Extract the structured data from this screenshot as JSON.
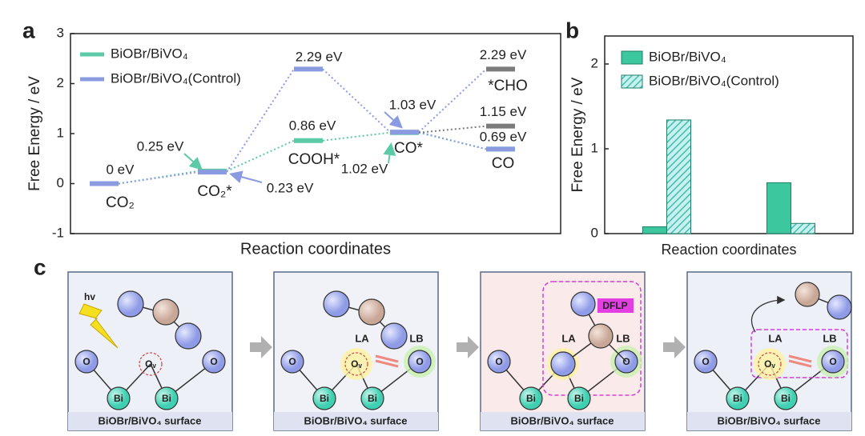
{
  "chart_data": [
    {
      "type": "energy-level",
      "label": "a",
      "ylabel": "Free Energy / eV",
      "xlabel": "Reaction coordinates",
      "ylim": [
        -1,
        3
      ],
      "yticks": [
        -1,
        0,
        1,
        2,
        3
      ],
      "categories": [
        "CO₂",
        "CO₂*",
        "COOH*",
        "CO*",
        "CO"
      ],
      "series": [
        {
          "name": "BiOBr/BiVO₄",
          "color": "#5ccaa6",
          "values": [
            0,
            0.25,
            0.86,
            1.02,
            0.69
          ],
          "value_labels": [
            null,
            "0.25 eV",
            "0.86 eV",
            "1.02 eV",
            null
          ]
        },
        {
          "name": "BiOBr/BiVO₄(Control)",
          "color": "#8b9be2",
          "values": [
            0,
            0.23,
            2.29,
            1.03,
            0.69
          ],
          "value_labels": [
            "0 eV",
            "0.23 eV",
            "2.29 eV",
            "1.03 eV",
            "0.69 eV"
          ]
        }
      ],
      "branch": {
        "label": "*CHO",
        "color": "#7b7b7b",
        "values": [
          2.29,
          1.15
        ],
        "value_labels": [
          "2.29 eV",
          "1.15 eV"
        ]
      }
    },
    {
      "type": "bar",
      "label": "b",
      "ylabel": "Free Energy / eV",
      "xlabel": "Reaction coordinates",
      "ylim": [
        0,
        2.33
      ],
      "yticks": [
        0,
        1,
        2
      ],
      "categories": [
        null,
        null
      ],
      "series": [
        {
          "name": "BiOBr/BiVO₄",
          "color": "#3cc79e",
          "hatch": false,
          "values": [
            0.08,
            0.6
          ]
        },
        {
          "name": "BiOBr/BiVO₄(Control)",
          "color": "#55cfc6",
          "hatch": true,
          "values": [
            1.34,
            0.12
          ]
        }
      ]
    }
  ],
  "diagram": {
    "label": "c",
    "surface": "BiOBr/BiVO₄ surface",
    "o": "O",
    "ov": "Oᵥ",
    "bi": "Bi",
    "hv": "hv",
    "la": "LA",
    "lb": "LB",
    "dflp": "DFLP"
  }
}
